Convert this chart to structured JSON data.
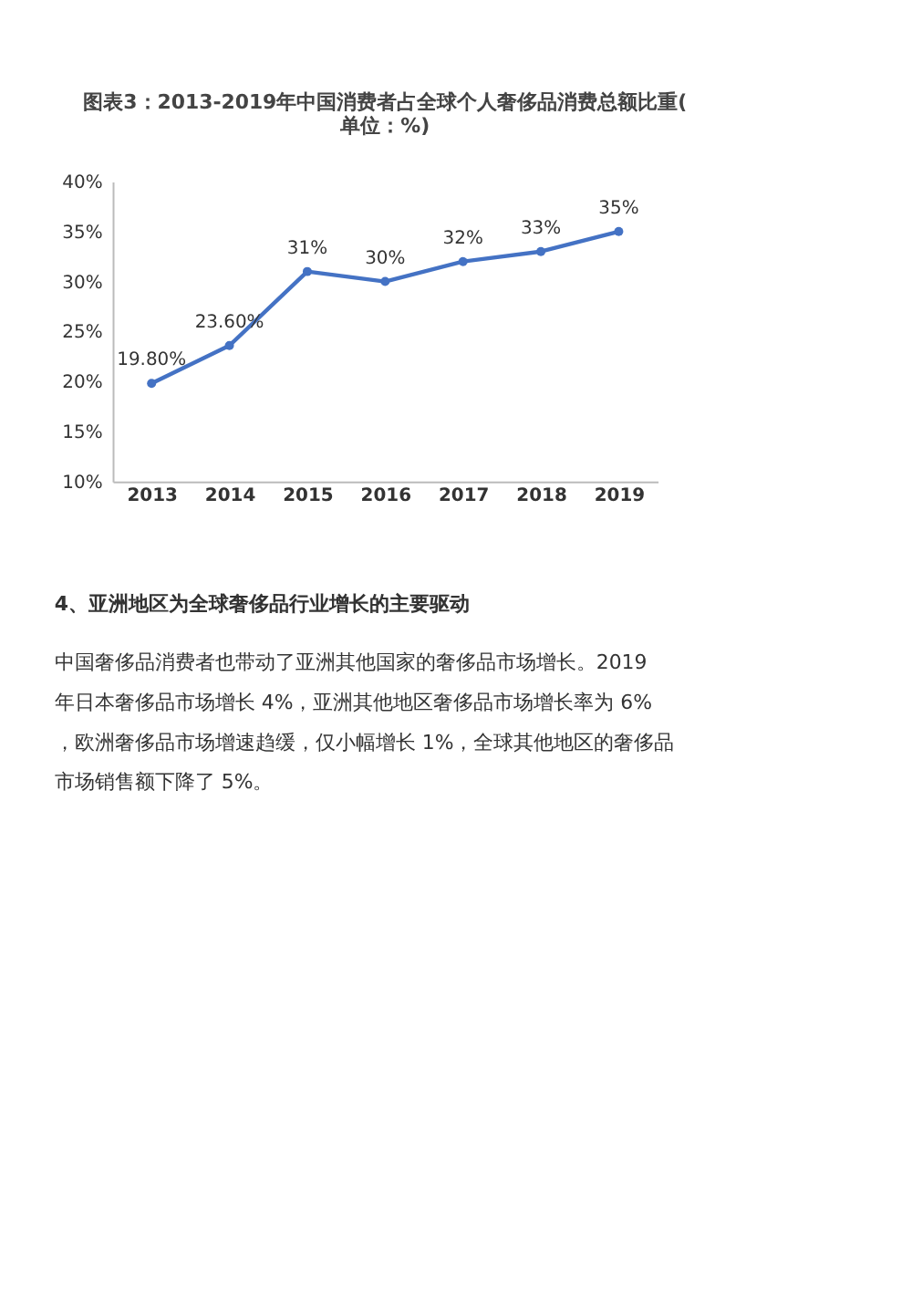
{
  "chart_data": {
    "type": "line",
    "title": "图表3：2013-2019年中国消费者占全球个人奢侈品消费总额比重(单位：%)",
    "categories": [
      "2013",
      "2014",
      "2015",
      "2016",
      "2017",
      "2018",
      "2019"
    ],
    "series": [
      {
        "color": "#4472c4",
        "values": [
          19.8,
          23.6,
          31,
          30,
          32,
          33,
          35
        ],
        "value_labels": [
          "19.80%",
          "23.60%",
          "31%",
          "30%",
          "32%",
          "33%",
          "35%"
        ]
      }
    ],
    "ylim": [
      10,
      40
    ],
    "yticks": [
      {
        "value": 10,
        "label": "10%"
      },
      {
        "value": 15,
        "label": "15%"
      },
      {
        "value": 20,
        "label": "20%"
      },
      {
        "value": 25,
        "label": "25%"
      },
      {
        "value": 30,
        "label": "30%"
      },
      {
        "value": 35,
        "label": "35%"
      },
      {
        "value": 40,
        "label": "40%"
      }
    ],
    "grid": false,
    "legend": false,
    "marker": "circle",
    "line_style": "solid",
    "annotations": [
      "4、亚洲地区为全球奢侈品行业增长的主要驱动",
      "中国奢侈品消费者也带动了亚洲其他国家的奢侈品市场增长。2019 年日本奢侈品市场增长 4%，亚洲其他地区奢侈品市场增长率为 6%，欧洲奢侈品市场增速趋缓，仅小幅增长 1%，全球其他地区的奢侈品市场销售额下降了 5%。"
    ]
  }
}
